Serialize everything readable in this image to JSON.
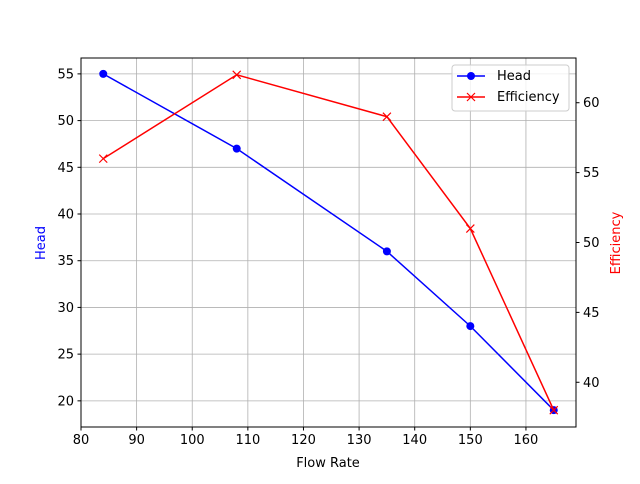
{
  "chart_data": {
    "type": "line",
    "title": "",
    "xlabel": "Flow Rate",
    "ylabel_left": "Head",
    "ylabel_right": "Efficiency",
    "xlim": [
      80,
      169
    ],
    "ylim_left": [
      17.2,
      56.7
    ],
    "ylim_right": [
      36.8,
      63.2
    ],
    "xticks": [
      80,
      90,
      100,
      110,
      120,
      130,
      140,
      150,
      160
    ],
    "yticks_left": [
      20,
      25,
      30,
      35,
      40,
      45,
      50,
      55
    ],
    "yticks_right": [
      40,
      45,
      50,
      55,
      60
    ],
    "grid": true,
    "legend_placement": "top-right",
    "x": [
      84,
      108,
      135,
      150,
      165
    ],
    "series": [
      {
        "name": "Head",
        "axis": "left",
        "values": [
          55,
          47,
          36,
          28,
          19
        ],
        "color": "#0000ff",
        "marker": "circle"
      },
      {
        "name": "Efficiency",
        "axis": "right",
        "values": [
          56,
          62,
          59,
          51,
          38
        ],
        "color": "#ff0000",
        "marker": "x"
      }
    ]
  }
}
